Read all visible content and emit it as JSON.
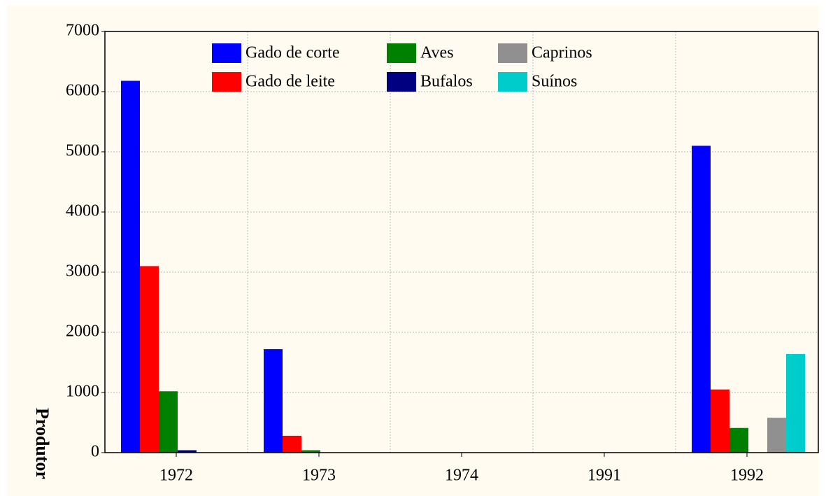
{
  "chart_data": {
    "type": "bar",
    "y_label": "Produtor",
    "categories": [
      "1972",
      "1973",
      "1974",
      "1991",
      "1992"
    ],
    "series": [
      {
        "name": "Gado de corte",
        "color": "#0000ff",
        "values": [
          6180,
          1720,
          0,
          0,
          5100
        ]
      },
      {
        "name": "Gado de leite",
        "color": "#ff0000",
        "values": [
          3100,
          280,
          0,
          0,
          1050
        ]
      },
      {
        "name": "Aves",
        "color": "#008000",
        "values": [
          1020,
          40,
          0,
          0,
          410
        ]
      },
      {
        "name": "Bufalos",
        "color": "#000080",
        "values": [
          40,
          0,
          0,
          0,
          0
        ]
      },
      {
        "name": "Caprinos",
        "color": "#909090",
        "values": [
          0,
          0,
          0,
          0,
          580
        ]
      },
      {
        "name": "Suínos",
        "color": "#00cccc",
        "values": [
          0,
          0,
          0,
          0,
          1640
        ]
      }
    ],
    "ylim": [
      0,
      7000
    ],
    "yticks": [
      0,
      1000,
      2000,
      3000,
      4000,
      5000,
      6000,
      7000
    ],
    "grid": true
  }
}
